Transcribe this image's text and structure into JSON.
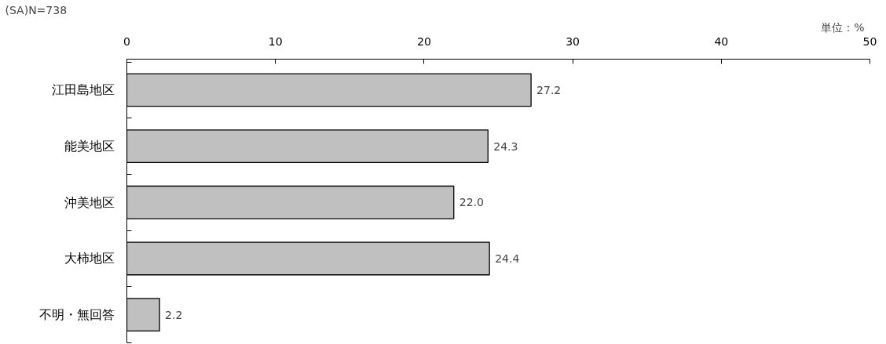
{
  "chart_data": {
    "type": "bar",
    "orientation": "horizontal",
    "categories": [
      "江田島地区",
      "能美地区",
      "沖美地区",
      "大柿地区",
      "不明・無回答"
    ],
    "values": [
      27.2,
      24.3,
      22.0,
      24.4,
      2.2
    ],
    "value_labels": [
      "27.2",
      "24.3",
      "22.0",
      "24.4",
      "2.2"
    ],
    "color": "#c0c0c0",
    "xlim": [
      0,
      50
    ],
    "xticks": [
      0,
      10,
      20,
      30,
      40,
      50
    ],
    "grid": false,
    "legend": false,
    "annotations": [
      "(SA)N=738",
      "単位：%"
    ]
  }
}
